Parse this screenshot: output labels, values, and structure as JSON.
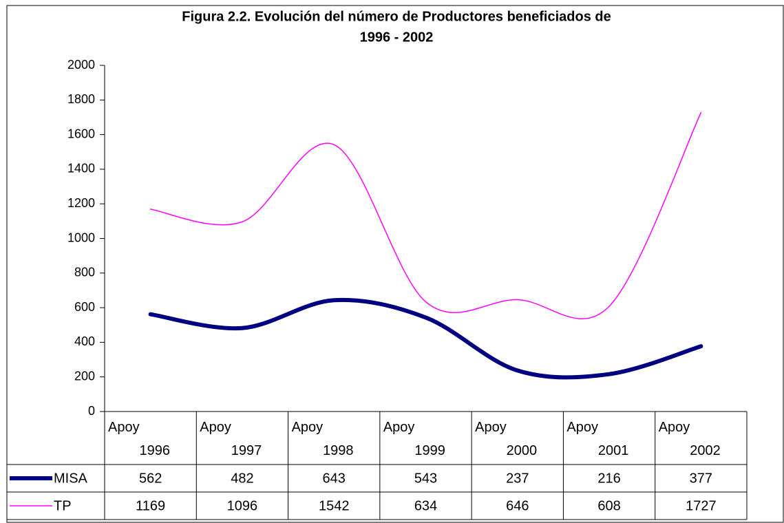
{
  "chart_data": {
    "type": "line",
    "title": [
      "Figura 2.2. Evolución del número de Productores beneficiados de",
      "1996 - 2002"
    ],
    "categories": [
      "Apoy 1996",
      "Apoy 1997",
      "Apoy 1998",
      "Apoy 1999",
      "Apoy 2000",
      "Apoy 2001",
      "Apoy 2002"
    ],
    "series": [
      {
        "name": "MISA",
        "color": "#000080",
        "values": [
          562,
          482,
          643,
          543,
          237,
          216,
          377
        ]
      },
      {
        "name": "TP",
        "color": "#ff00ff",
        "values": [
          1169,
          1096,
          1542,
          634,
          646,
          608,
          1727
        ]
      }
    ],
    "ylim": [
      0,
      2000
    ],
    "yticks": [
      0,
      200,
      400,
      600,
      800,
      1000,
      1200,
      1400,
      1600,
      1800,
      2000
    ]
  }
}
